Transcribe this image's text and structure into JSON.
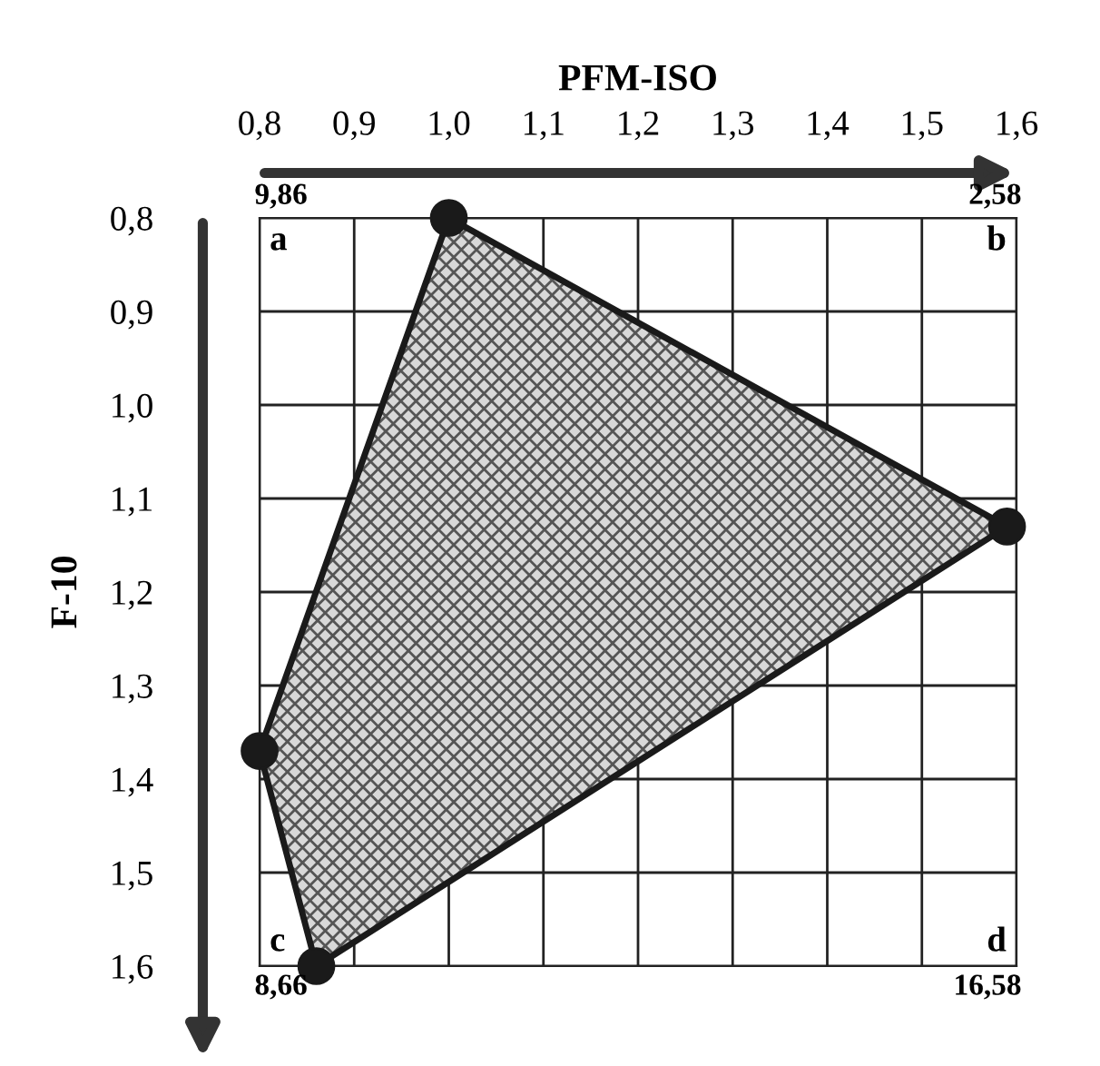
{
  "chart_data": {
    "type": "area",
    "xlabel": "PFM-ISO",
    "ylabel": "F-10",
    "x": [
      1.0,
      1.59,
      0.86,
      0.8
    ],
    "series": [
      {
        "color": "#1a1a1a",
        "values": [
          0.8,
          1.13,
          1.6,
          1.37
        ]
      }
    ],
    "marker": "circle",
    "line_style": "solid",
    "grid": true,
    "xlim": [
      0.8,
      1.6
    ],
    "ylim": [
      1.6,
      0.8
    ],
    "xticks": [
      {
        "value": 0.8,
        "label": "0,8"
      },
      {
        "value": 0.9,
        "label": "0,9"
      },
      {
        "value": 1.0,
        "label": "1,0"
      },
      {
        "value": 1.1,
        "label": "1,1"
      },
      {
        "value": 1.2,
        "label": "1,2"
      },
      {
        "value": 1.3,
        "label": "1,3"
      },
      {
        "value": 1.4,
        "label": "1,4"
      },
      {
        "value": 1.5,
        "label": "1,5"
      },
      {
        "value": 1.6,
        "label": "1,6"
      }
    ],
    "yticks": [
      {
        "value": 0.8,
        "label": "0,8"
      },
      {
        "value": 0.9,
        "label": "0,9"
      },
      {
        "value": 1.0,
        "label": "1,0"
      },
      {
        "value": 1.1,
        "label": "1,1"
      },
      {
        "value": 1.2,
        "label": "1,2"
      },
      {
        "value": 1.3,
        "label": "1,3"
      },
      {
        "value": 1.4,
        "label": "1,4"
      },
      {
        "value": 1.5,
        "label": "1,5"
      },
      {
        "value": 1.6,
        "label": "1,6"
      }
    ],
    "annotations": [
      "a",
      "9,86",
      "b",
      "2,58",
      "c",
      "8,66",
      "d",
      "16,58"
    ]
  }
}
